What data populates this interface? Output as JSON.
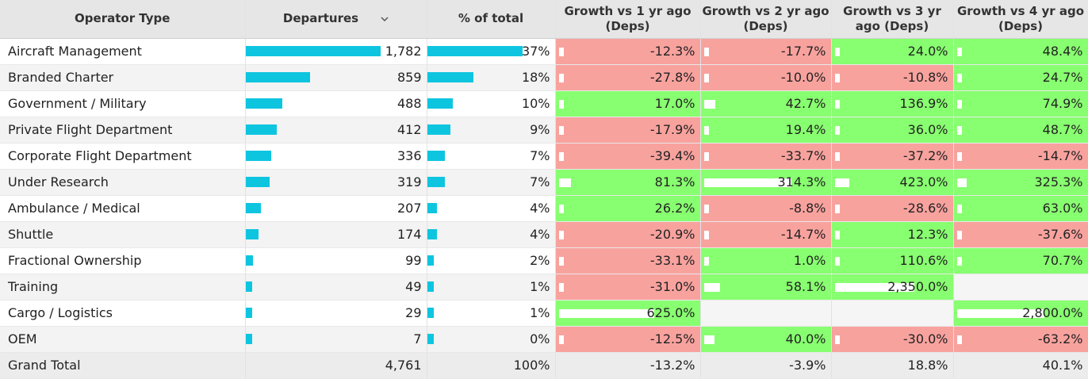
{
  "headers": {
    "operator_type": "Operator Type",
    "departures": "Departures",
    "pct_total": "% of total",
    "g1": "Growth vs 1 yr ago (Deps)",
    "g2": "Growth vs 2 yr ago (Deps)",
    "g3": "Growth vs 3 yr ago (Deps)",
    "g4": "Growth vs 4 yr ago (Deps)"
  },
  "colors": {
    "bar": "#0ec5e0",
    "positive": "#88ff70",
    "negative": "#f8a29e",
    "header": "#e6e6e6"
  },
  "rows": [
    {
      "name": "Aircraft Management",
      "departures": 1782,
      "departures_label": "1,782",
      "pct": 37,
      "pct_label": "37%",
      "g": [
        -12.3,
        -17.7,
        24.0,
        48.4
      ],
      "g_labels": [
        "-12.3%",
        "-17.7%",
        "24.0%",
        "48.4%"
      ]
    },
    {
      "name": "Branded Charter",
      "departures": 859,
      "departures_label": "859",
      "pct": 18,
      "pct_label": "18%",
      "g": [
        -27.8,
        -10.0,
        -10.8,
        24.7
      ],
      "g_labels": [
        "-27.8%",
        "-10.0%",
        "-10.8%",
        "24.7%"
      ]
    },
    {
      "name": "Government / Military",
      "departures": 488,
      "departures_label": "488",
      "pct": 10,
      "pct_label": "10%",
      "g": [
        17.0,
        42.7,
        136.9,
        74.9
      ],
      "g_labels": [
        "17.0%",
        "42.7%",
        "136.9%",
        "74.9%"
      ]
    },
    {
      "name": "Private Flight Department",
      "departures": 412,
      "departures_label": "412",
      "pct": 9,
      "pct_label": "9%",
      "g": [
        -17.9,
        19.4,
        36.0,
        48.7
      ],
      "g_labels": [
        "-17.9%",
        "19.4%",
        "36.0%",
        "48.7%"
      ]
    },
    {
      "name": "Corporate Flight Department",
      "departures": 336,
      "departures_label": "336",
      "pct": 7,
      "pct_label": "7%",
      "g": [
        -39.4,
        -33.7,
        -37.2,
        -14.7
      ],
      "g_labels": [
        "-39.4%",
        "-33.7%",
        "-37.2%",
        "-14.7%"
      ]
    },
    {
      "name": "Under Research",
      "departures": 319,
      "departures_label": "319",
      "pct": 7,
      "pct_label": "7%",
      "g": [
        81.3,
        314.3,
        423.0,
        325.3
      ],
      "g_labels": [
        "81.3%",
        "314.3%",
        "423.0%",
        "325.3%"
      ]
    },
    {
      "name": "Ambulance / Medical",
      "departures": 207,
      "departures_label": "207",
      "pct": 4,
      "pct_label": "4%",
      "g": [
        26.2,
        -8.8,
        -28.6,
        63.0
      ],
      "g_labels": [
        "26.2%",
        "-8.8%",
        "-28.6%",
        "63.0%"
      ]
    },
    {
      "name": "Shuttle",
      "departures": 174,
      "departures_label": "174",
      "pct": 4,
      "pct_label": "4%",
      "g": [
        -20.9,
        -14.7,
        12.3,
        -37.6
      ],
      "g_labels": [
        "-20.9%",
        "-14.7%",
        "12.3%",
        "-37.6%"
      ]
    },
    {
      "name": "Fractional Ownership",
      "departures": 99,
      "departures_label": "99",
      "pct": 2,
      "pct_label": "2%",
      "g": [
        -33.1,
        1.0,
        110.6,
        70.7
      ],
      "g_labels": [
        "-33.1%",
        "1.0%",
        "110.6%",
        "70.7%"
      ]
    },
    {
      "name": "Training",
      "departures": 49,
      "departures_label": "49",
      "pct": 1,
      "pct_label": "1%",
      "g": [
        -31.0,
        58.1,
        2350.0,
        null
      ],
      "g_labels": [
        "-31.0%",
        "58.1%",
        "2,350.0%",
        ""
      ]
    },
    {
      "name": "Cargo / Logistics",
      "departures": 29,
      "departures_label": "29",
      "pct": 1,
      "pct_label": "1%",
      "g": [
        625.0,
        null,
        null,
        2800.0
      ],
      "g_labels": [
        "625.0%",
        "",
        "",
        "2,800.0%"
      ]
    },
    {
      "name": "OEM",
      "departures": 7,
      "departures_label": "7",
      "pct": 0,
      "pct_label": "0%",
      "g": [
        -12.5,
        40.0,
        -30.0,
        -63.2
      ],
      "g_labels": [
        "-12.5%",
        "40.0%",
        "-30.0%",
        "-63.2%"
      ]
    }
  ],
  "total": {
    "name": "Grand Total",
    "departures_label": "4,761",
    "pct_label": "100%",
    "g_labels": [
      "-13.2%",
      "-3.9%",
      "18.8%",
      "40.1%"
    ]
  }
}
